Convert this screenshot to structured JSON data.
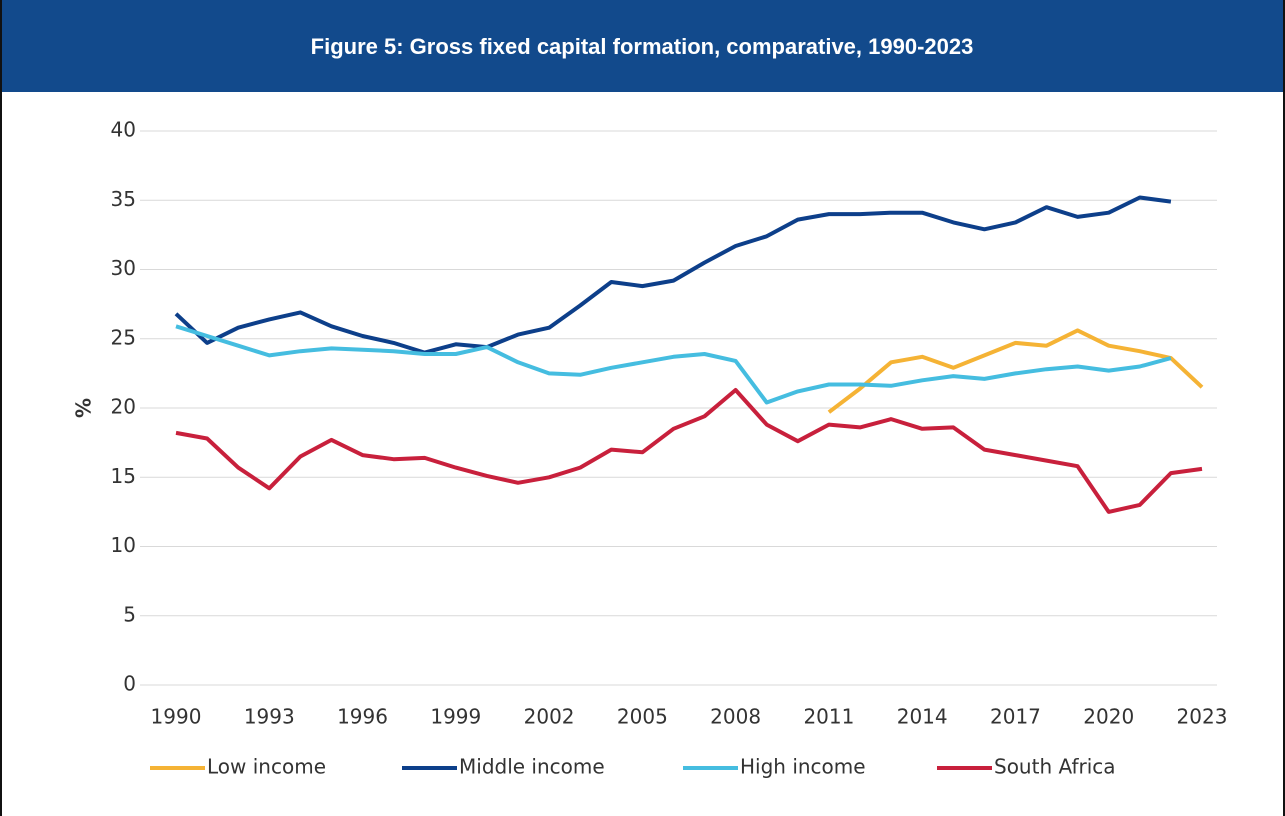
{
  "chart_data": {
    "type": "line",
    "title": "Figure 5: Gross fixed capital formation, comparative, 1990-2023",
    "y_label": "%",
    "x": [
      1990,
      1991,
      1992,
      1993,
      1994,
      1995,
      1996,
      1997,
      1998,
      1999,
      2000,
      2001,
      2002,
      2003,
      2004,
      2005,
      2006,
      2007,
      2008,
      2009,
      2010,
      2011,
      2012,
      2013,
      2014,
      2015,
      2016,
      2017,
      2018,
      2019,
      2020,
      2021,
      2022,
      2023
    ],
    "xlim": [
      1990,
      2023
    ],
    "xticks": [
      1990,
      1993,
      1996,
      1999,
      2002,
      2005,
      2008,
      2011,
      2014,
      2017,
      2020,
      2023
    ],
    "ylim": [
      0,
      40
    ],
    "yticks": [
      0,
      5,
      10,
      15,
      20,
      25,
      30,
      35,
      40
    ],
    "grid": true,
    "legend": "bottom",
    "series": [
      {
        "name": "Low income",
        "color": "#f5b335",
        "values": [
          null,
          null,
          null,
          null,
          null,
          null,
          null,
          null,
          null,
          null,
          null,
          null,
          null,
          null,
          null,
          null,
          null,
          null,
          null,
          null,
          null,
          19.7,
          21.4,
          23.3,
          23.7,
          22.9,
          23.8,
          24.7,
          24.5,
          25.6,
          24.5,
          24.1,
          23.6,
          21.5
        ]
      },
      {
        "name": "Middle income",
        "color": "#0d3f8a",
        "values": [
          26.8,
          24.7,
          25.8,
          26.4,
          26.9,
          25.9,
          25.2,
          24.7,
          24.0,
          24.6,
          24.4,
          25.3,
          25.8,
          27.4,
          29.1,
          28.8,
          29.2,
          30.5,
          31.7,
          32.4,
          33.6,
          34.0,
          34.0,
          34.1,
          34.1,
          33.4,
          32.9,
          33.4,
          34.5,
          33.8,
          34.1,
          35.2,
          34.9,
          null
        ]
      },
      {
        "name": "High income",
        "color": "#45bde0",
        "values": [
          25.9,
          25.2,
          24.5,
          23.8,
          24.1,
          24.3,
          24.2,
          24.1,
          23.9,
          23.9,
          24.4,
          23.3,
          22.5,
          22.4,
          22.9,
          23.3,
          23.7,
          23.9,
          23.4,
          20.4,
          21.2,
          21.7,
          21.7,
          21.6,
          22.0,
          22.3,
          22.1,
          22.5,
          22.8,
          23.0,
          22.7,
          23.0,
          23.6,
          null
        ]
      },
      {
        "name": "South Africa",
        "color": "#c8203c",
        "values": [
          18.2,
          17.8,
          15.7,
          14.2,
          16.5,
          17.7,
          16.6,
          16.3,
          16.4,
          15.7,
          15.1,
          14.6,
          15.0,
          15.7,
          17.0,
          16.8,
          18.5,
          19.4,
          21.3,
          18.8,
          17.6,
          18.8,
          18.6,
          19.2,
          18.5,
          18.6,
          17.0,
          16.6,
          16.2,
          15.8,
          12.5,
          13.0,
          15.3,
          15.6
        ]
      }
    ]
  }
}
